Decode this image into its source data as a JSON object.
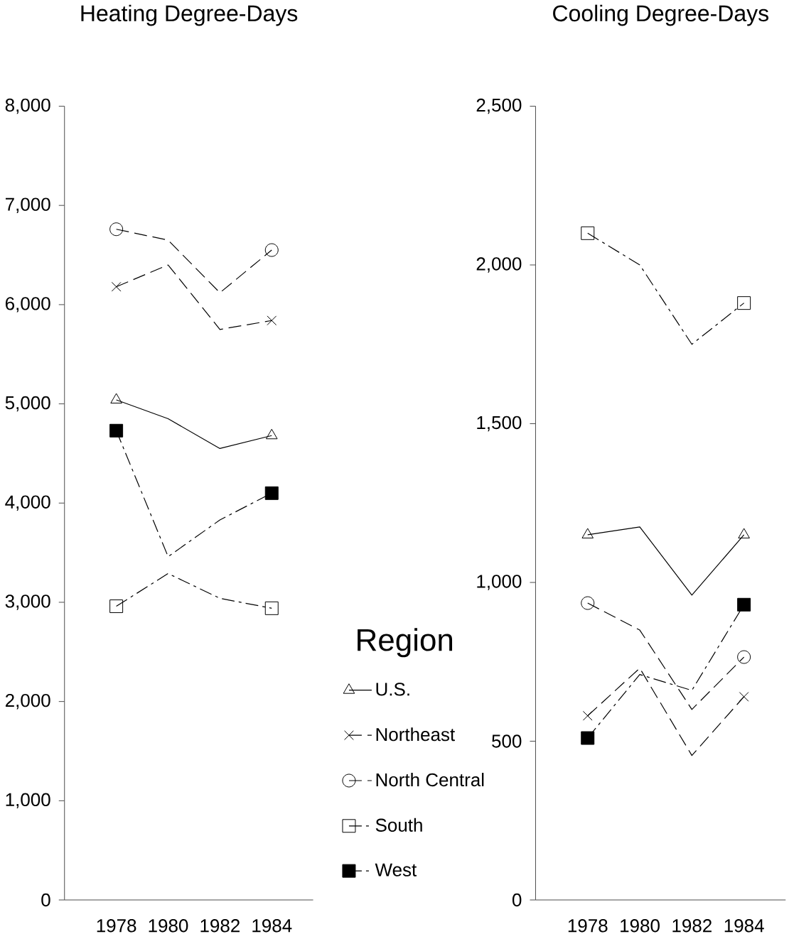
{
  "chart_data": [
    {
      "type": "line",
      "title": "Heating Degree-Days",
      "x": [
        1978,
        1980,
        1982,
        1984
      ],
      "xlim": [
        1976,
        1985.6
      ],
      "xticks": [
        1978,
        1980,
        1982,
        1984
      ],
      "ylim": [
        0,
        8000
      ],
      "yticks": [
        {
          "value": 0,
          "label": "0"
        },
        {
          "value": 1000,
          "label": "1,000"
        },
        {
          "value": 2000,
          "label": "2,000"
        },
        {
          "value": 3000,
          "label": "3,000"
        },
        {
          "value": 4000,
          "label": "4,000"
        },
        {
          "value": 5000,
          "label": "5,000"
        },
        {
          "value": 6000,
          "label": "6,000"
        },
        {
          "value": 7000,
          "label": "7,000"
        },
        {
          "value": 8000,
          "label": "8,000"
        }
      ],
      "legend": "right",
      "legend_title": "Region",
      "series": [
        {
          "name": "U.S.",
          "color": "#000000",
          "marker": "triangle",
          "line_style": "solid",
          "values": [
            5040,
            4850,
            4550,
            4680
          ]
        },
        {
          "name": "Northeast",
          "color": "#000000",
          "marker": "cross",
          "line_style": "dashed",
          "values": [
            6180,
            6400,
            5750,
            5840
          ]
        },
        {
          "name": "North Central",
          "color": "#000000",
          "marker": "circle",
          "line_style": "dashed",
          "values": [
            6760,
            6650,
            6120,
            6550
          ]
        },
        {
          "name": "South",
          "color": "#000000",
          "marker": "square",
          "line_style": "dashdot",
          "values": [
            2960,
            3290,
            3040,
            2940
          ]
        },
        {
          "name": "West",
          "color": "#000000",
          "marker": "square",
          "line_style": "dashdot",
          "values": [
            4730,
            3460,
            3830,
            4100
          ]
        }
      ]
    },
    {
      "type": "line",
      "title": "Cooling Degree-Days",
      "x": [
        1978,
        1980,
        1982,
        1984
      ],
      "xlim": [
        1976,
        1985.6
      ],
      "xticks": [
        1978,
        1980,
        1982,
        1984
      ],
      "ylim": [
        0,
        2500
      ],
      "yticks": [
        {
          "value": 0,
          "label": "0"
        },
        {
          "value": 500,
          "label": "500"
        },
        {
          "value": 1000,
          "label": "1,000"
        },
        {
          "value": 1500,
          "label": "1,500"
        },
        {
          "value": 2000,
          "label": "2,000"
        },
        {
          "value": 2500,
          "label": "2,500"
        }
      ],
      "series": [
        {
          "color": "#000000",
          "marker": "triangle",
          "line_style": "solid",
          "values": [
            1150,
            1175,
            960,
            1150
          ]
        },
        {
          "color": "#000000",
          "marker": "cross",
          "line_style": "dashed",
          "values": [
            580,
            730,
            455,
            640
          ]
        },
        {
          "color": "#000000",
          "marker": "circle",
          "line_style": "dashed",
          "values": [
            935,
            850,
            600,
            765
          ]
        },
        {
          "color": "#000000",
          "marker": "square",
          "line_style": "dashdot",
          "values": [
            2100,
            2000,
            1750,
            1880
          ]
        },
        {
          "color": "#000000",
          "marker": "square",
          "line_style": "dashdot",
          "values": [
            510,
            710,
            660,
            930
          ]
        }
      ]
    }
  ]
}
